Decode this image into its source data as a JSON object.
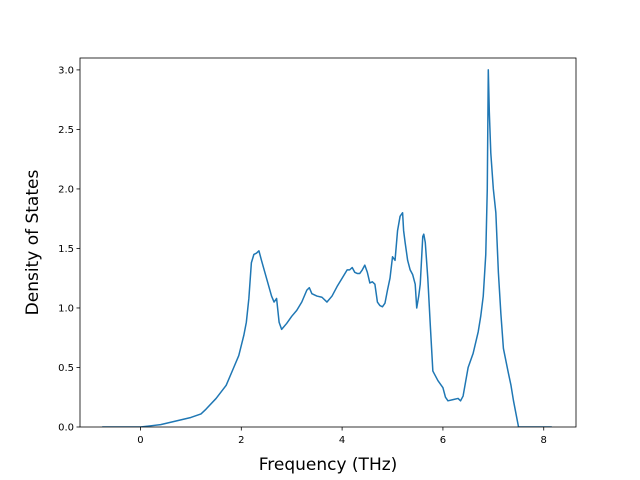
{
  "chart_data": {
    "type": "line",
    "title": "",
    "xlabel": "Frequency (THz)",
    "ylabel": "Density of States",
    "xlim": [
      -1.2,
      8.64
    ],
    "ylim": [
      0,
      3.1
    ],
    "xticks": [
      0,
      2,
      4,
      6,
      8
    ],
    "yticks": [
      0.0,
      0.5,
      1.0,
      1.5,
      2.0,
      2.5,
      3.0
    ],
    "xtick_labels": [
      "0",
      "2",
      "4",
      "6",
      "8"
    ],
    "ytick_labels": [
      "0.0",
      "0.5",
      "1.0",
      "1.5",
      "2.0",
      "2.5",
      "3.0"
    ],
    "grid": false,
    "legend": "none",
    "series": [
      {
        "color": "#1f77b4",
        "x": [
          -0.76,
          -0.4,
          0,
          0.2,
          0.4,
          0.6,
          0.8,
          1.0,
          1.2,
          1.3,
          1.5,
          1.7,
          1.85,
          1.95,
          2.05,
          2.1,
          2.15,
          2.2,
          2.25,
          2.3,
          2.35,
          2.4,
          2.5,
          2.6,
          2.65,
          2.7,
          2.75,
          2.8,
          2.9,
          3.0,
          3.1,
          3.2,
          3.3,
          3.35,
          3.4,
          3.5,
          3.6,
          3.7,
          3.8,
          3.9,
          4.0,
          4.1,
          4.15,
          4.2,
          4.25,
          4.3,
          4.35,
          4.4,
          4.45,
          4.5,
          4.55,
          4.6,
          4.65,
          4.7,
          4.75,
          4.8,
          4.85,
          4.9,
          4.95,
          5.0,
          5.05,
          5.1,
          5.15,
          5.2,
          5.22,
          5.25,
          5.3,
          5.35,
          5.4,
          5.45,
          5.48,
          5.52,
          5.55,
          5.6,
          5.62,
          5.65,
          5.7,
          5.75,
          5.8,
          5.85,
          5.9,
          6.0,
          6.05,
          6.1,
          6.2,
          6.3,
          6.35,
          6.4,
          6.45,
          6.5,
          6.6,
          6.7,
          6.75,
          6.8,
          6.85,
          6.88,
          6.9,
          6.92,
          6.95,
          7.0,
          7.05,
          7.1,
          7.15,
          7.2,
          7.3,
          7.35,
          7.4,
          7.5,
          7.6,
          7.8,
          8.0,
          8.16
        ],
        "y": [
          0.0,
          0.0,
          0.0,
          0.01,
          0.02,
          0.04,
          0.06,
          0.08,
          0.11,
          0.15,
          0.24,
          0.35,
          0.5,
          0.6,
          0.77,
          0.88,
          1.08,
          1.38,
          1.45,
          1.46,
          1.48,
          1.4,
          1.25,
          1.1,
          1.05,
          1.08,
          0.88,
          0.82,
          0.87,
          0.93,
          0.98,
          1.05,
          1.15,
          1.17,
          1.12,
          1.1,
          1.09,
          1.05,
          1.1,
          1.18,
          1.25,
          1.32,
          1.32,
          1.34,
          1.3,
          1.29,
          1.29,
          1.32,
          1.36,
          1.3,
          1.21,
          1.22,
          1.2,
          1.05,
          1.02,
          1.01,
          1.04,
          1.15,
          1.25,
          1.43,
          1.4,
          1.65,
          1.77,
          1.8,
          1.65,
          1.55,
          1.4,
          1.32,
          1.28,
          1.2,
          1.0,
          1.1,
          1.2,
          1.6,
          1.62,
          1.55,
          1.25,
          0.85,
          0.47,
          0.43,
          0.39,
          0.33,
          0.25,
          0.22,
          0.23,
          0.24,
          0.22,
          0.26,
          0.38,
          0.5,
          0.62,
          0.8,
          0.93,
          1.1,
          1.45,
          2.0,
          3.0,
          2.65,
          2.3,
          2.0,
          1.8,
          1.3,
          0.95,
          0.66,
          0.45,
          0.35,
          0.22,
          0.0,
          0.0,
          0.0,
          0.0,
          0.0
        ]
      }
    ]
  }
}
